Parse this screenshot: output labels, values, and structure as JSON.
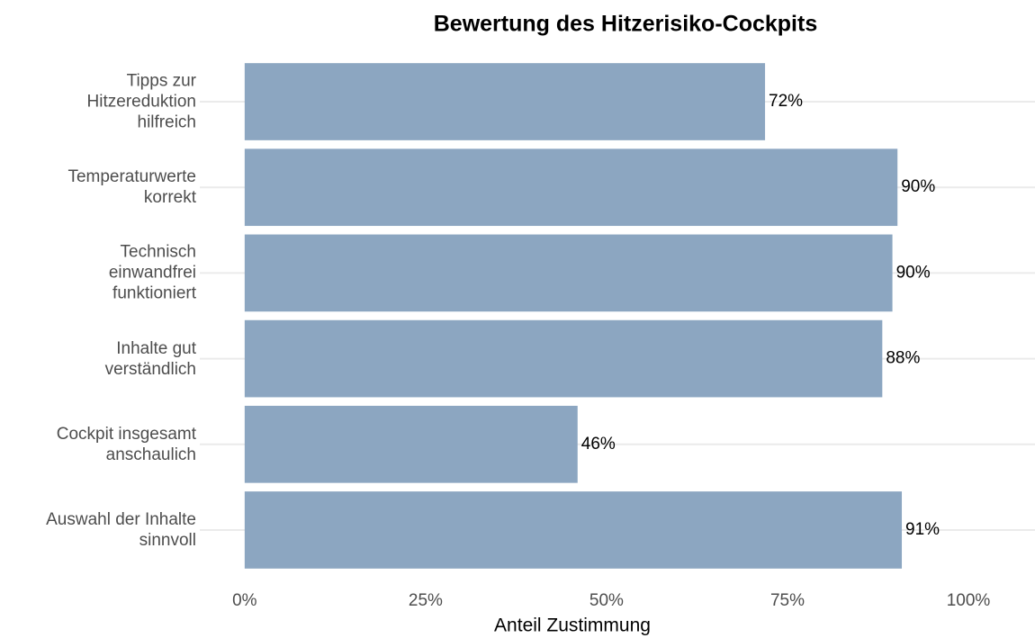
{
  "chart_data": {
    "type": "bar",
    "orientation": "horizontal",
    "title": "Bewertung des Hitzerisiko-Cockpits",
    "xlabel": "Anteil Zustimmung",
    "categories": [
      "Tipps zur\nHitzereduktion\nhilfreich",
      "Temperaturwerte\nkorrekt",
      "Technisch\neinwandfrei\nfunktioniert",
      "Inhalte gut\nverständlich",
      "Cockpit insgesamt\nanschaulich",
      "Auswahl der Inhalte\nsinnvoll"
    ],
    "values": [
      71.9,
      90.2,
      89.5,
      88.1,
      46.0,
      90.8
    ],
    "value_labels": [
      "72%",
      "90%",
      "90%",
      "88%",
      "46%",
      "91%"
    ],
    "color": "#8ca6c1",
    "xlim": [
      -6.2,
      109.2
    ],
    "xticks": [
      {
        "value": 0,
        "label": "0%"
      },
      {
        "value": 25,
        "label": "25%"
      },
      {
        "value": 50,
        "label": "50%"
      },
      {
        "value": 75,
        "label": "75%"
      },
      {
        "value": 100,
        "label": "100%"
      }
    ],
    "grid": true
  }
}
